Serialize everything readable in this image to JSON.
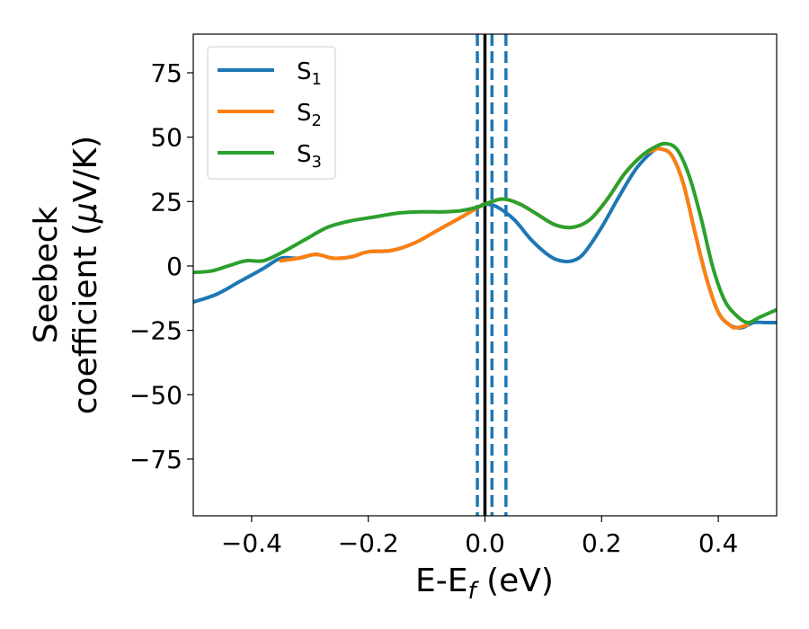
{
  "chart_data": {
    "type": "line",
    "xlabel": {
      "main": "E-E",
      "sub": "f",
      "unit": " (eV)"
    },
    "ylabel": {
      "line1": "Seebeck",
      "line2_main": "coefficient  (",
      "line2_mu": "μ",
      "line2_unit": "V/K)"
    },
    "xlim": [
      -0.5,
      0.5
    ],
    "ylim": [
      -97,
      90
    ],
    "xticks": [
      -0.4,
      -0.2,
      0.0,
      0.2,
      0.4
    ],
    "xtick_labels": [
      "−0.4",
      "−0.2",
      "0.0",
      "0.2",
      "0.4"
    ],
    "yticks": [
      75,
      50,
      25,
      0,
      -25,
      -50,
      -75
    ],
    "ytick_labels": [
      "75",
      "50",
      "25",
      "0",
      "−25",
      "−50",
      "−75"
    ],
    "grid": false,
    "legend": "top-left",
    "vlines": [
      {
        "x": 0.0,
        "color": "#000000",
        "style": "solid"
      },
      {
        "x": -0.013,
        "color": "#1f77b4",
        "style": "dashed"
      },
      {
        "x": 0.012,
        "color": "#1f77b4",
        "style": "dashed"
      },
      {
        "x": 0.036,
        "color": "#1f77b4",
        "style": "dashed"
      }
    ],
    "series": [
      {
        "name": "S",
        "sub": "1",
        "color": "#1f77b4",
        "points": [
          [
            -0.5,
            -14
          ],
          [
            -0.46,
            -11
          ],
          [
            -0.42,
            -6
          ],
          [
            -0.38,
            -1
          ],
          [
            -0.35,
            3
          ],
          [
            -0.32,
            3
          ],
          [
            -0.29,
            4.5
          ],
          [
            -0.26,
            3
          ],
          [
            -0.23,
            3.5
          ],
          [
            -0.2,
            5.5
          ],
          [
            -0.16,
            6
          ],
          [
            -0.12,
            9
          ],
          [
            -0.08,
            14
          ],
          [
            -0.04,
            19
          ],
          [
            -0.01,
            23
          ],
          [
            0.0,
            24
          ],
          [
            0.02,
            23
          ],
          [
            0.05,
            18
          ],
          [
            0.08,
            10
          ],
          [
            0.11,
            4
          ],
          [
            0.13,
            2
          ],
          [
            0.15,
            2
          ],
          [
            0.17,
            5
          ],
          [
            0.2,
            15
          ],
          [
            0.23,
            27
          ],
          [
            0.26,
            38
          ],
          [
            0.29,
            45
          ],
          [
            0.3,
            45.5
          ],
          [
            0.32,
            43
          ],
          [
            0.34,
            32
          ],
          [
            0.36,
            13
          ],
          [
            0.38,
            -5
          ],
          [
            0.4,
            -18
          ],
          [
            0.42,
            -23
          ],
          [
            0.44,
            -24
          ],
          [
            0.46,
            -22
          ],
          [
            0.48,
            -22
          ],
          [
            0.5,
            -22
          ]
        ]
      },
      {
        "name": "S",
        "sub": "2",
        "color": "#ff7f0e",
        "points": [
          [
            -0.35,
            2
          ],
          [
            -0.32,
            3
          ],
          [
            -0.29,
            4.5
          ],
          [
            -0.26,
            3
          ],
          [
            -0.23,
            3.5
          ],
          [
            -0.2,
            5.5
          ],
          [
            -0.16,
            6
          ],
          [
            -0.12,
            9
          ],
          [
            -0.08,
            14
          ],
          [
            -0.04,
            19
          ],
          [
            -0.01,
            23
          ],
          [
            0.0,
            24
          ],
          [
            0.03,
            26
          ],
          [
            0.06,
            24
          ],
          [
            0.09,
            20
          ],
          [
            0.12,
            16
          ],
          [
            0.15,
            15
          ],
          [
            0.18,
            18
          ],
          [
            0.21,
            26
          ],
          [
            0.24,
            36
          ],
          [
            0.27,
            43
          ],
          [
            0.29,
            45
          ],
          [
            0.3,
            45.5
          ],
          [
            0.32,
            43
          ],
          [
            0.34,
            32
          ],
          [
            0.36,
            13
          ],
          [
            0.38,
            -5
          ],
          [
            0.4,
            -18
          ],
          [
            0.42,
            -23
          ],
          [
            0.43,
            -24
          ],
          [
            0.45,
            -23
          ]
        ]
      },
      {
        "name": "S",
        "sub": "3",
        "color": "#2ca02c",
        "points": [
          [
            -0.5,
            -2.5
          ],
          [
            -0.47,
            -2
          ],
          [
            -0.44,
            0
          ],
          [
            -0.41,
            2
          ],
          [
            -0.38,
            2
          ],
          [
            -0.35,
            5
          ],
          [
            -0.31,
            10
          ],
          [
            -0.27,
            15
          ],
          [
            -0.23,
            17.5
          ],
          [
            -0.19,
            19
          ],
          [
            -0.15,
            20.5
          ],
          [
            -0.11,
            21
          ],
          [
            -0.07,
            21
          ],
          [
            -0.04,
            21.5
          ],
          [
            -0.01,
            23
          ],
          [
            0.0,
            24
          ],
          [
            0.03,
            26
          ],
          [
            0.06,
            24
          ],
          [
            0.09,
            20
          ],
          [
            0.12,
            16
          ],
          [
            0.15,
            15
          ],
          [
            0.18,
            18
          ],
          [
            0.21,
            26
          ],
          [
            0.24,
            36
          ],
          [
            0.27,
            43
          ],
          [
            0.29,
            46
          ],
          [
            0.31,
            47.5
          ],
          [
            0.33,
            45
          ],
          [
            0.35,
            35
          ],
          [
            0.37,
            19
          ],
          [
            0.39,
            0
          ],
          [
            0.41,
            -13
          ],
          [
            0.43,
            -19
          ],
          [
            0.45,
            -22
          ],
          [
            0.47,
            -20
          ],
          [
            0.5,
            -17
          ]
        ]
      }
    ]
  }
}
